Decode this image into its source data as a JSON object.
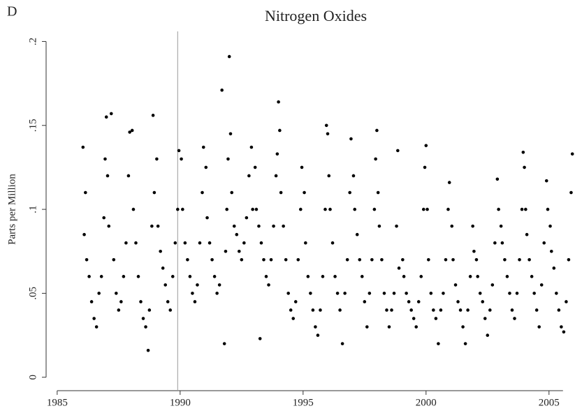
{
  "panel_label": "D",
  "chart_data": {
    "type": "scatter",
    "title": "Nitrogen Oxides",
    "y_label": "Parts per Million",
    "color": "#000000",
    "xlim": [
      1984.55,
      2006.2
    ],
    "xticks": [
      1985,
      1990,
      1995,
      2000,
      2005
    ],
    "ylim": [
      -0.008,
      0.206
    ],
    "yticks": [
      0,
      {
        "value": 0.05,
        "label": ".05"
      },
      {
        "value": 0.1,
        "label": ".1"
      },
      {
        "value": 0.15,
        "label": ".15"
      },
      {
        "value": 0.2,
        "label": ".2"
      }
    ],
    "vline_x": 1989.9,
    "x": [
      1986.05,
      1986.1,
      1986.15,
      1986.2,
      1986.3,
      1986.4,
      1986.5,
      1986.6,
      1986.7,
      1986.8,
      1986.9,
      1986.95,
      1987.0,
      1987.05,
      1987.1,
      1987.2,
      1987.3,
      1987.4,
      1987.5,
      1987.6,
      1987.7,
      1987.8,
      1987.9,
      1987.95,
      1988.05,
      1988.1,
      1988.2,
      1988.3,
      1988.4,
      1988.5,
      1988.6,
      1988.7,
      1988.75,
      1988.85,
      1988.9,
      1988.95,
      1989.05,
      1989.1,
      1989.2,
      1989.3,
      1989.4,
      1989.5,
      1989.6,
      1989.7,
      1989.8,
      1989.9,
      1989.95,
      1990.05,
      1990.1,
      1990.2,
      1990.3,
      1990.4,
      1990.5,
      1990.6,
      1990.7,
      1990.8,
      1990.9,
      1990.95,
      1991.05,
      1991.1,
      1991.2,
      1991.3,
      1991.4,
      1991.5,
      1991.6,
      1991.7,
      1991.8,
      1991.85,
      1991.9,
      1991.95,
      1992.0,
      1992.05,
      1992.1,
      1992.2,
      1992.3,
      1992.4,
      1992.5,
      1992.6,
      1992.7,
      1992.8,
      1992.9,
      1992.95,
      1993.05,
      1993.1,
      1993.2,
      1993.25,
      1993.3,
      1993.4,
      1993.5,
      1993.6,
      1993.7,
      1993.8,
      1993.9,
      1993.95,
      1994.0,
      1994.05,
      1994.1,
      1994.2,
      1994.3,
      1994.4,
      1994.5,
      1994.6,
      1994.7,
      1994.8,
      1994.9,
      1994.95,
      1995.05,
      1995.1,
      1995.2,
      1995.3,
      1995.4,
      1995.5,
      1995.6,
      1995.7,
      1995.8,
      1995.9,
      1995.95,
      1996.0,
      1996.05,
      1996.1,
      1996.2,
      1996.3,
      1996.4,
      1996.5,
      1996.6,
      1996.7,
      1996.8,
      1996.9,
      1996.95,
      1997.05,
      1997.1,
      1997.2,
      1997.3,
      1997.4,
      1997.5,
      1997.6,
      1997.7,
      1997.8,
      1997.9,
      1997.95,
      1998.0,
      1998.05,
      1998.1,
      1998.2,
      1998.3,
      1998.4,
      1998.5,
      1998.6,
      1998.7,
      1998.8,
      1998.85,
      1998.9,
      1999.05,
      1999.1,
      1999.2,
      1999.3,
      1999.4,
      1999.5,
      1999.6,
      1999.7,
      1999.8,
      1999.9,
      1999.95,
      2000.0,
      2000.05,
      2000.1,
      2000.2,
      2000.3,
      2000.4,
      2000.5,
      2000.6,
      2000.7,
      2000.8,
      2000.9,
      2000.95,
      2001.05,
      2001.1,
      2001.2,
      2001.3,
      2001.4,
      2001.5,
      2001.6,
      2001.7,
      2001.8,
      2001.9,
      2001.95,
      2002.05,
      2002.1,
      2002.2,
      2002.3,
      2002.4,
      2002.5,
      2002.6,
      2002.7,
      2002.8,
      2002.9,
      2002.95,
      2003.05,
      2003.1,
      2003.2,
      2003.3,
      2003.4,
      2003.5,
      2003.6,
      2003.7,
      2003.8,
      2003.9,
      2003.95,
      2004.0,
      2004.05,
      2004.1,
      2004.2,
      2004.3,
      2004.4,
      2004.5,
      2004.6,
      2004.7,
      2004.8,
      2004.9,
      2004.95,
      2005.05,
      2005.1,
      2005.2,
      2005.3,
      2005.4,
      2005.5,
      2005.6,
      2005.7,
      2005.8,
      2005.9,
      2005.95
    ],
    "values": [
      0.137,
      0.085,
      0.11,
      0.07,
      0.06,
      0.045,
      0.035,
      0.03,
      0.05,
      0.06,
      0.095,
      0.13,
      0.155,
      0.12,
      0.09,
      0.157,
      0.07,
      0.05,
      0.04,
      0.045,
      0.06,
      0.08,
      0.12,
      0.146,
      0.147,
      0.1,
      0.08,
      0.06,
      0.045,
      0.035,
      0.03,
      0.016,
      0.04,
      0.09,
      0.156,
      0.11,
      0.13,
      0.09,
      0.075,
      0.065,
      0.055,
      0.045,
      0.04,
      0.06,
      0.08,
      0.1,
      0.135,
      0.13,
      0.1,
      0.08,
      0.07,
      0.06,
      0.05,
      0.045,
      0.055,
      0.08,
      0.11,
      0.137,
      0.125,
      0.095,
      0.08,
      0.07,
      0.06,
      0.05,
      0.055,
      0.171,
      0.02,
      0.075,
      0.1,
      0.13,
      0.191,
      0.145,
      0.11,
      0.09,
      0.085,
      0.075,
      0.07,
      0.08,
      0.095,
      0.12,
      0.137,
      0.1,
      0.125,
      0.1,
      0.09,
      0.023,
      0.08,
      0.07,
      0.06,
      0.055,
      0.07,
      0.09,
      0.12,
      0.133,
      0.164,
      0.147,
      0.11,
      0.09,
      0.07,
      0.05,
      0.04,
      0.035,
      0.045,
      0.07,
      0.1,
      0.125,
      0.11,
      0.08,
      0.06,
      0.05,
      0.04,
      0.03,
      0.025,
      0.04,
      0.06,
      0.1,
      0.15,
      0.145,
      0.12,
      0.1,
      0.08,
      0.06,
      0.05,
      0.04,
      0.02,
      0.05,
      0.07,
      0.11,
      0.142,
      0.12,
      0.1,
      0.085,
      0.07,
      0.06,
      0.045,
      0.03,
      0.05,
      0.07,
      0.1,
      0.13,
      0.147,
      0.11,
      0.09,
      0.07,
      0.05,
      0.04,
      0.03,
      0.04,
      0.05,
      0.09,
      0.135,
      0.065,
      0.07,
      0.06,
      0.05,
      0.045,
      0.04,
      0.035,
      0.03,
      0.045,
      0.06,
      0.1,
      0.125,
      0.138,
      0.1,
      0.07,
      0.05,
      0.04,
      0.035,
      0.02,
      0.04,
      0.05,
      0.07,
      0.1,
      0.116,
      0.09,
      0.07,
      0.055,
      0.045,
      0.04,
      0.03,
      0.02,
      0.04,
      0.06,
      0.09,
      0.075,
      0.07,
      0.06,
      0.05,
      0.045,
      0.035,
      0.025,
      0.04,
      0.055,
      0.08,
      0.118,
      0.1,
      0.09,
      0.08,
      0.07,
      0.06,
      0.05,
      0.04,
      0.035,
      0.05,
      0.07,
      0.1,
      0.134,
      0.125,
      0.1,
      0.085,
      0.07,
      0.06,
      0.05,
      0.04,
      0.03,
      0.055,
      0.08,
      0.117,
      0.1,
      0.09,
      0.075,
      0.065,
      0.05,
      0.04,
      0.03,
      0.027,
      0.045,
      0.07,
      0.11,
      0.133
    ]
  }
}
